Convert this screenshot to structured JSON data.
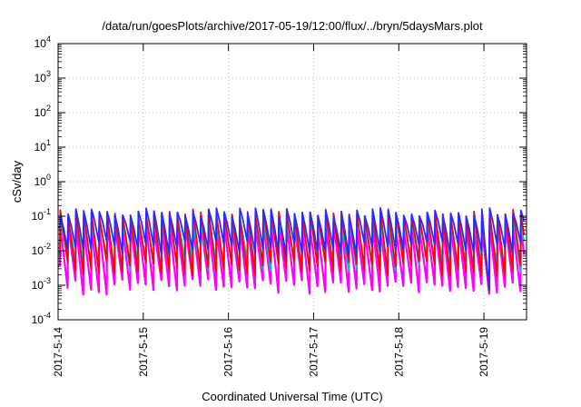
{
  "chart_data": {
    "type": "line",
    "title": "/data/run/goesPlots/archive/2017-05-19/12:00/flux/../bryn/5daysMars.plot",
    "xlabel": "Coordinated Universal Time (UTC)",
    "ylabel": "cSv/day",
    "yscale": "log",
    "ylim": [
      0.0001,
      10000
    ],
    "xlim": [
      "2017-05-14 00:00",
      "2017-05-19 12:00"
    ],
    "x_ticks": [
      "2017-5-14",
      "2017-5-15",
      "2017-5-16",
      "2017-5-17",
      "2017-5-18",
      "2017-5-19"
    ],
    "y_ticks": [
      {
        "base": "10",
        "exp": "-4"
      },
      {
        "base": "10",
        "exp": "-3"
      },
      {
        "base": "10",
        "exp": "-2"
      },
      {
        "base": "10",
        "exp": "-1"
      },
      {
        "base": "10",
        "exp": "0"
      },
      {
        "base": "10",
        "exp": "1"
      },
      {
        "base": "10",
        "exp": "2"
      },
      {
        "base": "10",
        "exp": "3"
      },
      {
        "base": "10",
        "exp": "4"
      }
    ],
    "grid": true,
    "legend": "none",
    "pattern": {
      "description_values": "Sawtooth: sharp rise to peak then decay to trough, repeating roughly every 2.2 hours",
      "period_hours": 2.2,
      "start_hour": 0.5,
      "series_peak_trough": [
        {
          "color": "#ff0000",
          "peak": 0.12,
          "trough": 0.003
        },
        {
          "color": "#2b2bff",
          "peak": 0.13,
          "trough": 0.012
        },
        {
          "color": "#00c0c0",
          "peak": 0.08,
          "trough": 0.004
        },
        {
          "color": "#ff00ff",
          "peak": 0.05,
          "trough": 0.0009
        }
      ],
      "dip_near_end": {
        "time": "2017-05-19 01:00",
        "min_value": 0.0007
      }
    }
  }
}
